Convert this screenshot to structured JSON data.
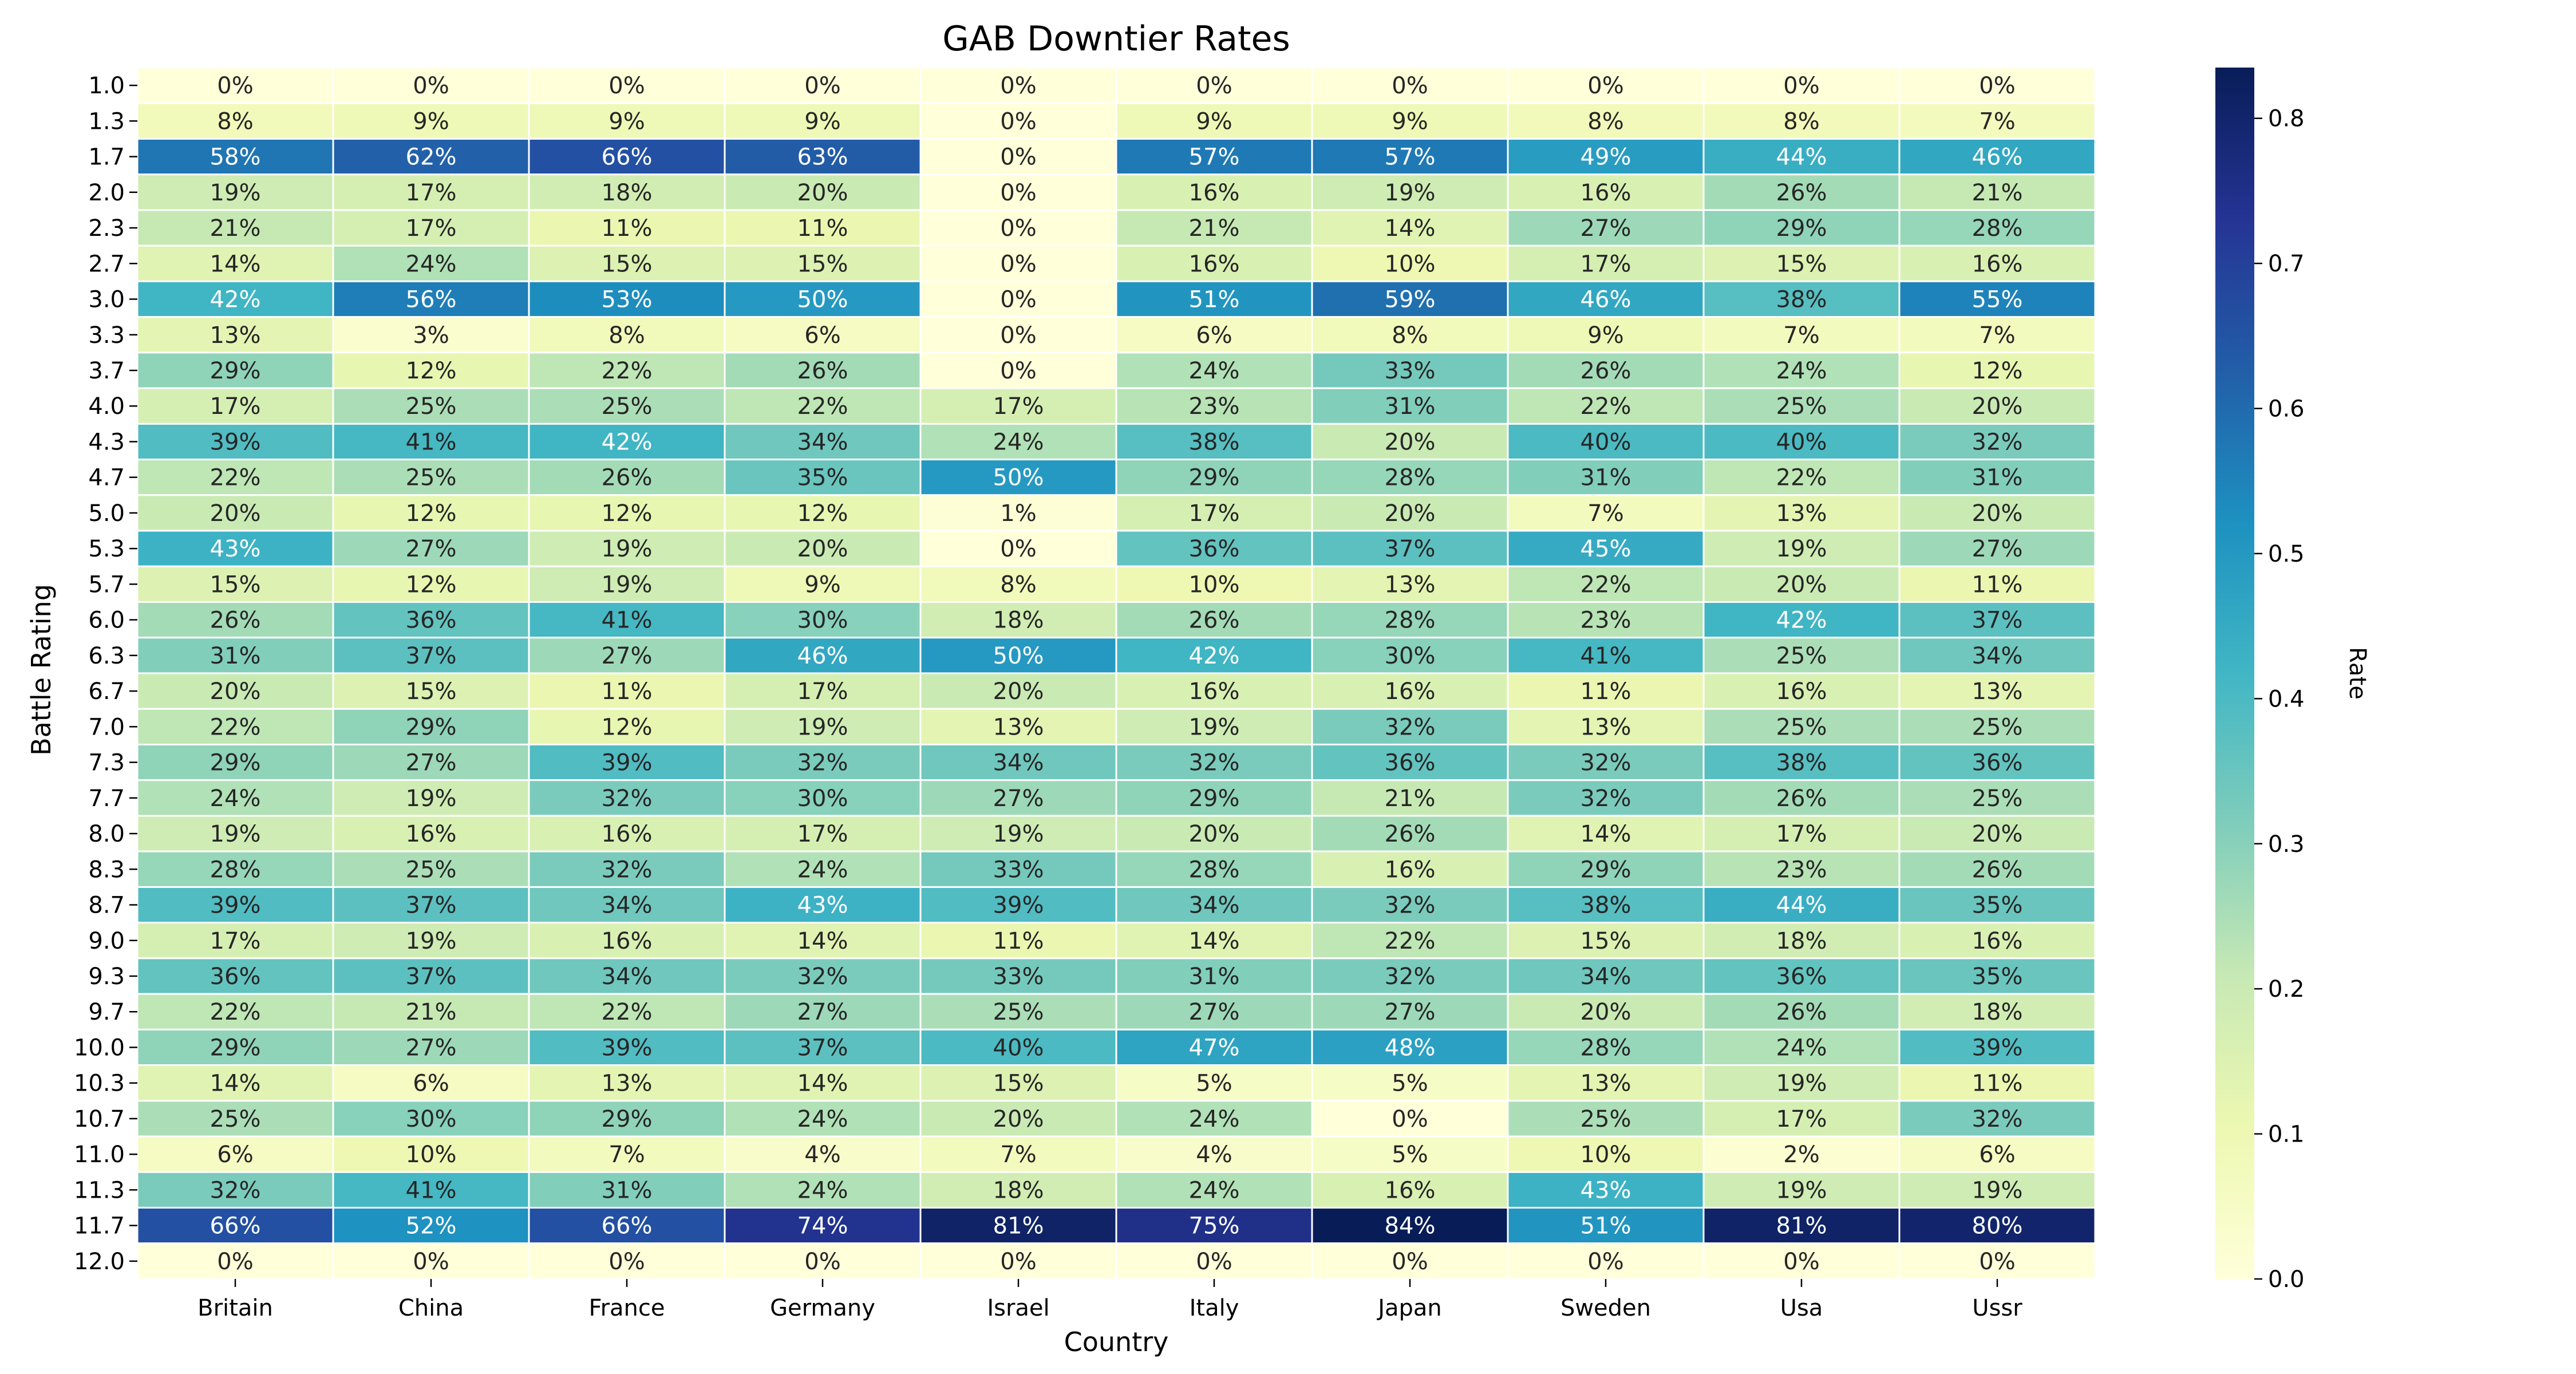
{
  "chart_data": {
    "type": "heatmap",
    "title": "GAB Downtier Rates",
    "xlabel": "Country",
    "ylabel": "Battle Rating",
    "colorbar_label": "Rate",
    "colormap": "YlGnBu",
    "value_range": [
      0.0,
      0.835
    ],
    "colorbar_ticks": [
      "0.0",
      "0.1",
      "0.2",
      "0.3",
      "0.4",
      "0.5",
      "0.6",
      "0.7",
      "0.8"
    ],
    "columns": [
      "Britain",
      "China",
      "France",
      "Germany",
      "Israel",
      "Italy",
      "Japan",
      "Sweden",
      "Usa",
      "Ussr"
    ],
    "rows": [
      "1.0",
      "1.3",
      "1.7",
      "2.0",
      "2.3",
      "2.7",
      "3.0",
      "3.3",
      "3.7",
      "4.0",
      "4.3",
      "4.7",
      "5.0",
      "5.3",
      "5.7",
      "6.0",
      "6.3",
      "6.7",
      "7.0",
      "7.3",
      "7.7",
      "8.0",
      "8.3",
      "8.7",
      "9.0",
      "9.3",
      "9.7",
      "10.0",
      "10.3",
      "10.7",
      "11.0",
      "11.3",
      "11.7",
      "12.0"
    ],
    "values": [
      [
        0,
        0,
        0,
        0,
        0,
        0,
        0,
        0,
        0,
        0
      ],
      [
        8,
        9,
        9,
        9,
        0,
        9,
        9,
        8,
        8,
        7
      ],
      [
        58,
        62,
        66,
        63,
        0,
        57,
        57,
        49,
        44,
        46
      ],
      [
        19,
        17,
        18,
        20,
        0,
        16,
        19,
        16,
        26,
        21
      ],
      [
        21,
        17,
        11,
        11,
        0,
        21,
        14,
        27,
        29,
        28
      ],
      [
        14,
        24,
        15,
        15,
        0,
        16,
        10,
        17,
        15,
        16
      ],
      [
        42,
        56,
        53,
        50,
        0,
        51,
        59,
        46,
        38,
        55
      ],
      [
        13,
        3,
        8,
        6,
        0,
        6,
        8,
        9,
        7,
        7
      ],
      [
        29,
        12,
        22,
        26,
        0,
        24,
        33,
        26,
        24,
        12
      ],
      [
        17,
        25,
        25,
        22,
        17,
        23,
        31,
        22,
        25,
        20
      ],
      [
        39,
        41,
        42,
        34,
        24,
        38,
        20,
        40,
        40,
        32
      ],
      [
        22,
        25,
        26,
        35,
        50,
        29,
        28,
        31,
        22,
        31
      ],
      [
        20,
        12,
        12,
        12,
        1,
        17,
        20,
        7,
        13,
        20
      ],
      [
        43,
        27,
        19,
        20,
        0,
        36,
        37,
        45,
        19,
        27
      ],
      [
        15,
        12,
        19,
        9,
        8,
        10,
        13,
        22,
        20,
        11
      ],
      [
        26,
        36,
        41,
        30,
        18,
        26,
        28,
        23,
        42,
        37
      ],
      [
        31,
        37,
        27,
        46,
        50,
        42,
        30,
        41,
        25,
        34
      ],
      [
        20,
        15,
        11,
        17,
        20,
        16,
        16,
        11,
        16,
        13
      ],
      [
        22,
        29,
        12,
        19,
        13,
        19,
        32,
        13,
        25,
        25
      ],
      [
        29,
        27,
        39,
        32,
        34,
        32,
        36,
        32,
        38,
        36
      ],
      [
        24,
        19,
        32,
        30,
        27,
        29,
        21,
        32,
        26,
        25
      ],
      [
        19,
        16,
        16,
        17,
        19,
        20,
        26,
        14,
        17,
        20
      ],
      [
        28,
        25,
        32,
        24,
        33,
        28,
        16,
        29,
        23,
        26
      ],
      [
        39,
        37,
        34,
        43,
        39,
        34,
        32,
        38,
        44,
        35
      ],
      [
        17,
        19,
        16,
        14,
        11,
        14,
        22,
        15,
        18,
        16
      ],
      [
        36,
        37,
        34,
        32,
        33,
        31,
        32,
        34,
        36,
        35
      ],
      [
        22,
        21,
        22,
        27,
        25,
        27,
        27,
        20,
        26,
        18
      ],
      [
        29,
        27,
        39,
        37,
        40,
        47,
        48,
        28,
        24,
        39
      ],
      [
        14,
        6,
        13,
        14,
        15,
        5,
        5,
        13,
        19,
        11
      ],
      [
        25,
        30,
        29,
        24,
        20,
        24,
        0,
        25,
        17,
        32
      ],
      [
        6,
        10,
        7,
        4,
        7,
        4,
        5,
        10,
        2,
        6
      ],
      [
        32,
        41,
        31,
        24,
        18,
        24,
        16,
        43,
        19,
        19
      ],
      [
        66,
        52,
        66,
        74,
        81,
        75,
        84,
        51,
        81,
        80
      ],
      [
        0,
        0,
        0,
        0,
        0,
        0,
        0,
        0,
        0,
        0
      ]
    ],
    "value_format": "{v}%"
  }
}
